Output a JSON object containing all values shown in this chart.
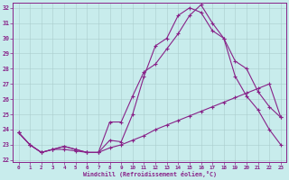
{
  "xlabel": "Windchill (Refroidissement éolien,°C)",
  "background_color": "#c8ecec",
  "line_color": "#882288",
  "xmin": -0.5,
  "xmax": 23.5,
  "ymin": 21.85,
  "ymax": 32.35,
  "xticks": [
    0,
    1,
    2,
    3,
    4,
    5,
    6,
    7,
    8,
    9,
    10,
    11,
    12,
    13,
    14,
    15,
    16,
    17,
    18,
    19,
    20,
    21,
    22,
    23
  ],
  "yticks": [
    22,
    23,
    24,
    25,
    26,
    27,
    28,
    29,
    30,
    31,
    32
  ],
  "line1": [
    23.8,
    23.0,
    22.5,
    22.7,
    22.7,
    22.6,
    22.5,
    22.5,
    22.8,
    23.0,
    23.3,
    23.6,
    24.0,
    24.3,
    24.6,
    24.9,
    25.2,
    25.5,
    25.8,
    26.1,
    26.4,
    26.7,
    27.0,
    24.8
  ],
  "line2": [
    23.8,
    23.0,
    22.5,
    22.7,
    22.9,
    22.7,
    22.5,
    22.5,
    23.3,
    23.2,
    25.0,
    27.5,
    29.5,
    30.0,
    31.5,
    32.0,
    31.7,
    30.5,
    30.0,
    27.5,
    26.2,
    25.3,
    24.0,
    23.0
  ],
  "line3": [
    23.8,
    23.0,
    22.5,
    22.7,
    22.9,
    22.7,
    22.5,
    22.5,
    24.5,
    24.5,
    26.2,
    27.8,
    28.3,
    29.3,
    30.3,
    31.5,
    32.2,
    31.0,
    30.0,
    28.5,
    28.0,
    26.5,
    25.5,
    24.8
  ]
}
